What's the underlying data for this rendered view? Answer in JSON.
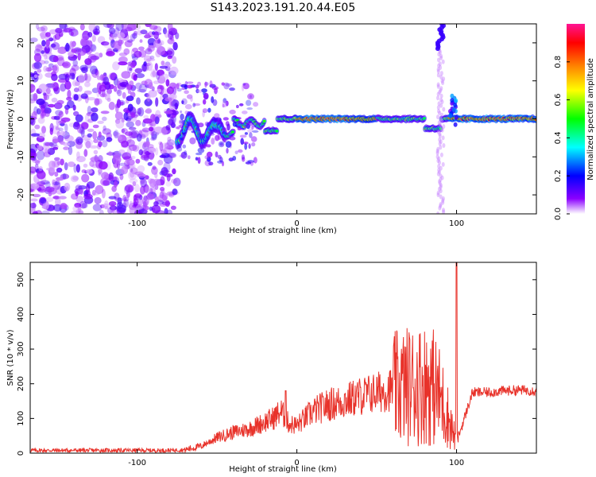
{
  "chart_data": [
    {
      "type": "heatmap",
      "title": "S143.2023.191.20.44.E05",
      "xlabel": "Height of straight line (km)",
      "ylabel": "Frequency (Hz)",
      "xlim": [
        -167,
        150
      ],
      "ylim": [
        -25,
        25
      ],
      "x_ticks": [
        -100,
        0,
        100
      ],
      "y_ticks": [
        -20,
        -10,
        0,
        10,
        20
      ],
      "colorbar": {
        "label": "Normalized spectral amplitude",
        "range": [
          0.0,
          1.0
        ],
        "ticks": [
          "0.0",
          "0.2",
          "0.4",
          "0.6",
          "0.8"
        ],
        "colormap": [
          "#ffffff",
          "#8b00ff",
          "#0000ff",
          "#00ffff",
          "#00ff00",
          "#ffff00",
          "#ff8000",
          "#ff0000",
          "#ff1493"
        ]
      },
      "features": [
        {
          "name": "broadband noise",
          "x_range": [
            -167,
            -75
          ],
          "freq_range": [
            -25,
            25
          ]
        },
        {
          "name": "central line",
          "x_range": [
            -75,
            150
          ],
          "freq_hz": 0
        },
        {
          "name": "vertical streak",
          "x_range": [
            88,
            92
          ],
          "freq_range": [
            -25,
            25
          ]
        }
      ]
    },
    {
      "type": "line",
      "title": "",
      "xlabel": "Height of straight line (km)",
      "ylabel": "SNR (10 * v/v)",
      "xlim": [
        -167,
        150
      ],
      "ylim": [
        0,
        550
      ],
      "x_ticks": [
        -100,
        0,
        100
      ],
      "y_ticks": [
        0,
        100,
        200,
        300,
        400,
        500
      ],
      "line_color": "#e8322a",
      "series": [
        {
          "x": [
            -167,
            -140,
            -120,
            -100,
            -80,
            -70,
            -60,
            -50,
            -40,
            -30,
            -20,
            -15,
            -10,
            -5,
            0,
            10,
            20,
            30,
            40,
            50,
            60,
            70,
            80,
            85,
            90,
            95,
            100,
            110,
            120,
            130,
            140,
            150
          ],
          "y": [
            8,
            8,
            8,
            8,
            8,
            10,
            20,
            45,
            60,
            70,
            90,
            100,
            120,
            85,
            80,
            120,
            140,
            150,
            165,
            175,
            185,
            195,
            200,
            195,
            160,
            100,
            30,
            175,
            175,
            180,
            182,
            180
          ]
        }
      ],
      "annotations": [
        {
          "x": -7,
          "y": 180
        },
        {
          "x": 100,
          "y": 550
        }
      ]
    }
  ]
}
